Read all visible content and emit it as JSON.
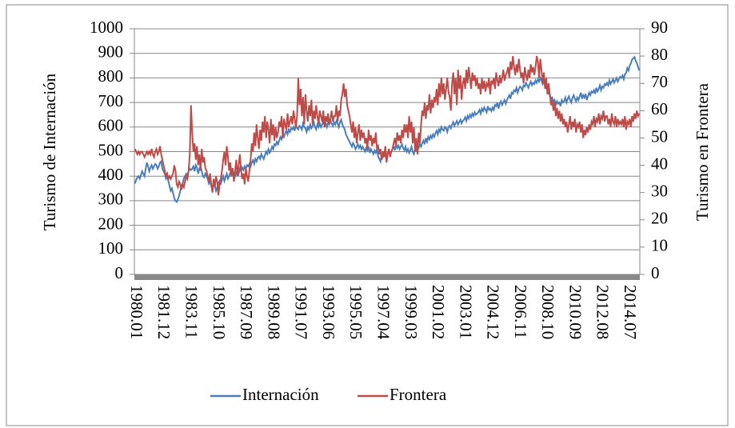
{
  "chart_data": {
    "type": "line",
    "y_label": "Turismo de Internación",
    "y2_label": "Turismo en Frontera",
    "ylim": [
      0,
      1000
    ],
    "yticks": [
      0,
      100,
      200,
      300,
      400,
      500,
      600,
      700,
      800,
      900,
      1000
    ],
    "y2lim": [
      0,
      90
    ],
    "y2ticks": [
      0,
      10,
      20,
      30,
      40,
      50,
      60,
      70,
      80,
      90
    ],
    "grid": true,
    "legend": "bottom",
    "categories": [
      "1980.01",
      null,
      null,
      null,
      null,
      null,
      null,
      null,
      null,
      null,
      null,
      null,
      null,
      null,
      null,
      null,
      null,
      null,
      null,
      null,
      null,
      null,
      null,
      "1981.12",
      null,
      null,
      null,
      null,
      null,
      null,
      null,
      null,
      null,
      null,
      null,
      null,
      null,
      null,
      null,
      null,
      null,
      null,
      null,
      null,
      null,
      null,
      "1983.11",
      null,
      null,
      null,
      null,
      null,
      null,
      null,
      null,
      null,
      null,
      null,
      null,
      null,
      null,
      null,
      null,
      null,
      null,
      null,
      null,
      null,
      null,
      "1985.10",
      null,
      null,
      null,
      null,
      null,
      null,
      null,
      null,
      null,
      null,
      null,
      null,
      null,
      null,
      null,
      null,
      null,
      null,
      null,
      null,
      null,
      null,
      "1987.09",
      null,
      null,
      null,
      null,
      null,
      null,
      null,
      null,
      null,
      null,
      null,
      null,
      null,
      null,
      null,
      null,
      null,
      null,
      null,
      null,
      null,
      null,
      "1989.08",
      null,
      null,
      null,
      null,
      null,
      null,
      null,
      null,
      null,
      null,
      null,
      null,
      null,
      null,
      null,
      null,
      null,
      null,
      null,
      null,
      null,
      null,
      "1991.07",
      null,
      null,
      null,
      null,
      null,
      null,
      null,
      null,
      null,
      null,
      null,
      null,
      null,
      null,
      null,
      null,
      null,
      null,
      null,
      null,
      null,
      null,
      "1993.06",
      null,
      null,
      null,
      null,
      null,
      null,
      null,
      null,
      null,
      null,
      null,
      null,
      null,
      null,
      null,
      null,
      null,
      null,
      null,
      null,
      null,
      null,
      "1995.05",
      null,
      null,
      null,
      null,
      null,
      null,
      null,
      null,
      null,
      null,
      null,
      null,
      null,
      null,
      null,
      null,
      null,
      null,
      null,
      null,
      null,
      null,
      "1997.04",
      null,
      null,
      null,
      null,
      null,
      null,
      null,
      null,
      null,
      null,
      null,
      null,
      null,
      null,
      null,
      null,
      null,
      null,
      null,
      null,
      null,
      null,
      "1999.03",
      null,
      null,
      null,
      null,
      null,
      null,
      null,
      null,
      null,
      null,
      null,
      null,
      null,
      null,
      null,
      null,
      null,
      null,
      null,
      null,
      null,
      null,
      "2001.02",
      null,
      null,
      null,
      null,
      null,
      null,
      null,
      null,
      null,
      null,
      null,
      null,
      null,
      null,
      null,
      null,
      null,
      null,
      null,
      null,
      null,
      null,
      "2003.01",
      null,
      null,
      null,
      null,
      null,
      null,
      null,
      null,
      null,
      null,
      null,
      null,
      null,
      null,
      null,
      null,
      null,
      null,
      null,
      null,
      null,
      null,
      "2004.12",
      null,
      null,
      null,
      null,
      null,
      null,
      null,
      null,
      null,
      null,
      null,
      null,
      null,
      null,
      null,
      null,
      null,
      null,
      null,
      null,
      null,
      null,
      "2006.11",
      null,
      null,
      null,
      null,
      null,
      null,
      null,
      null,
      null,
      null,
      null,
      null,
      null,
      null,
      null,
      null,
      null,
      null,
      null,
      null,
      null,
      null,
      "2008.10",
      null,
      null,
      null,
      null,
      null,
      null,
      null,
      null,
      null,
      null,
      null,
      null,
      null,
      null,
      null,
      null,
      null,
      null,
      null,
      null,
      null,
      null,
      "2010.09",
      null,
      null,
      null,
      null,
      null,
      null,
      null,
      null,
      null,
      null,
      null,
      null,
      null,
      null,
      null,
      null,
      null,
      null,
      null,
      null,
      null,
      null,
      "2012.08",
      null,
      null,
      null,
      null,
      null,
      null,
      null,
      null,
      null,
      null,
      null,
      null,
      null,
      null,
      null,
      null,
      null,
      null,
      null,
      null,
      null,
      null,
      "2014.07",
      null,
      null,
      null,
      null,
      null,
      null,
      null,
      null,
      null
    ],
    "series": [
      {
        "name": "Internación",
        "color": "#4a7ebb",
        "values": [
          370,
          385,
          395,
          400,
          390,
          405,
          420,
          410,
          400,
          430,
          455,
          440,
          420,
          435,
          445,
          430,
          440,
          450,
          445,
          430,
          440,
          455,
          460,
          430,
          420,
          410,
          390,
          400,
          380,
          360,
          340,
          350,
          330,
          310,
          300,
          295,
          305,
          320,
          340,
          360,
          370,
          390,
          400,
          410,
          405,
          420,
          430,
          425,
          430,
          440,
          420,
          445,
          435,
          410,
          430,
          440,
          420,
          400,
          395,
          410,
          400,
          390,
          370,
          380,
          360,
          350,
          370,
          360,
          340,
          355,
          370,
          380,
          370,
          385,
          400,
          380,
          395,
          410,
          390,
          400,
          415,
          405,
          420,
          410,
          400,
          415,
          425,
          410,
          430,
          420,
          435,
          425,
          440,
          430,
          445,
          440,
          450,
          440,
          455,
          465,
          450,
          470,
          460,
          475,
          480,
          470,
          490,
          480,
          470,
          485,
          500,
          490,
          510,
          495,
          505,
          520,
          510,
          530,
          525,
          540,
          530,
          545,
          560,
          550,
          570,
          560,
          575,
          585,
          570,
          590,
          580,
          595,
          590,
          600,
          585,
          610,
          595,
          590,
          605,
          600,
          590,
          615,
          600,
          595,
          580,
          600,
          590,
          610,
          595,
          605,
          620,
          600,
          590,
          610,
          600,
          615,
          600,
          610,
          625,
          605,
          615,
          600,
          620,
          610,
          625,
          615,
          605,
          620,
          610,
          625,
          615,
          600,
          620,
          630,
          610,
          600,
          590,
          570,
          560,
          550,
          540,
          530,
          520,
          535,
          525,
          510,
          520,
          530,
          515,
          525,
          510,
          520,
          510,
          500,
          515,
          505,
          520,
          495,
          510,
          500,
          490,
          505,
          495,
          510,
          480,
          470,
          460,
          490,
          475,
          500,
          485,
          470,
          495,
          505,
          490,
          500,
          510,
          520,
          505,
          530,
          515,
          525,
          510,
          520,
          530,
          515,
          505,
          520,
          500,
          510,
          495,
          505,
          520,
          500,
          490,
          510,
          505,
          520,
          515,
          530,
          520,
          535,
          545,
          530,
          555,
          540,
          560,
          550,
          565,
          555,
          570,
          560,
          575,
          585,
          570,
          590,
          580,
          600,
          590,
          585,
          600,
          595,
          580,
          600,
          605,
          595,
          610,
          620,
          605,
          615,
          625,
          610,
          620,
          630,
          615,
          625,
          630,
          640,
          625,
          645,
          635,
          650,
          640,
          655,
          645,
          660,
          650,
          655,
          660,
          670,
          655,
          675,
          665,
          680,
          670,
          660,
          685,
          670,
          675,
          665,
          680,
          670,
          690,
          685,
          700,
          675,
          695,
          705,
          690,
          700,
          710,
          695,
          710,
          720,
          730,
          715,
          740,
          735,
          750,
          745,
          760,
          740,
          755,
          765,
          760,
          750,
          770,
          765,
          780,
          770,
          760,
          775,
          785,
          770,
          780,
          775,
          790,
          780,
          795,
          785,
          800,
          790,
          775,
          785,
          770,
          760,
          750,
          740,
          730,
          715,
          720,
          700,
          710,
          690,
          705,
          695,
          700,
          685,
          710,
          700,
          705,
          720,
          700,
          715,
          725,
          710,
          700,
          720,
          730,
          715,
          705,
          720,
          710,
          725,
          740,
          715,
          730,
          720,
          735,
          710,
          725,
          740,
          730,
          745,
          740,
          750,
          735,
          760,
          745,
          755,
          770,
          750,
          765,
          760,
          775,
          770,
          780,
          770,
          790,
          775,
          785,
          795,
          780,
          790,
          800,
          785,
          795,
          805,
          800,
          810,
          795,
          815,
          820,
          840,
          830,
          850,
          860,
          875,
          880,
          885,
          870,
          860,
          845,
          830
        ]
      },
      {
        "name": "Frontera",
        "color": "#be4b48",
        "axis": "y2",
        "values": [
          46,
          45,
          44,
          45,
          44,
          45,
          45,
          44,
          43,
          44,
          45,
          44,
          45,
          44,
          46,
          44,
          43,
          45,
          46,
          44,
          45,
          47,
          44,
          42,
          40,
          38,
          36,
          37,
          35,
          36,
          35,
          36,
          37,
          40,
          38,
          33,
          32,
          34,
          33,
          31,
          33,
          32,
          34,
          36,
          35,
          38,
          44,
          62,
          52,
          45,
          48,
          42,
          47,
          40,
          44,
          38,
          46,
          41,
          43,
          39,
          38,
          36,
          34,
          37,
          33,
          30,
          35,
          32,
          36,
          34,
          29,
          33,
          35,
          38,
          42,
          45,
          40,
          47,
          43,
          38,
          41,
          36,
          39,
          34,
          38,
          42,
          36,
          40,
          44,
          38,
          35,
          37,
          33,
          39,
          36,
          34,
          38,
          42,
          48,
          45,
          52,
          47,
          55,
          50,
          46,
          53,
          49,
          56,
          52,
          58,
          50,
          56,
          53,
          48,
          57,
          51,
          55,
          49,
          54,
          50,
          52,
          56,
          54,
          58,
          50,
          57,
          55,
          53,
          59,
          54,
          56,
          58,
          55,
          60,
          57,
          54,
          58,
          72,
          62,
          68,
          58,
          65,
          55,
          66,
          60,
          56,
          62,
          58,
          64,
          55,
          60,
          57,
          62,
          58,
          55,
          60,
          58,
          56,
          60,
          54,
          58,
          56,
          59,
          55,
          57,
          60,
          56,
          58,
          58,
          62,
          56,
          60,
          58,
          64,
          66,
          70,
          65,
          68,
          62,
          60,
          58,
          55,
          52,
          56,
          50,
          54,
          48,
          52,
          55,
          49,
          53,
          50,
          52,
          48,
          50,
          46,
          53,
          49,
          51,
          47,
          50,
          48,
          52,
          46,
          47,
          44,
          46,
          42,
          45,
          43,
          47,
          41,
          44,
          46,
          43,
          45,
          46,
          48,
          50,
          47,
          52,
          49,
          51,
          48,
          53,
          50,
          55,
          52,
          55,
          50,
          58,
          52,
          56,
          48,
          54,
          45,
          50,
          44,
          52,
          48,
          55,
          60,
          58,
          63,
          57,
          62,
          60,
          66,
          59,
          64,
          61,
          65,
          63,
          68,
          62,
          70,
          65,
          72,
          66,
          70,
          64,
          68,
          72,
          67,
          65,
          60,
          70,
          74,
          66,
          72,
          62,
          75,
          68,
          73,
          64,
          70,
          72,
          68,
          75,
          70,
          76,
          72,
          68,
          74,
          71,
          73,
          69,
          72,
          68,
          70,
          66,
          72,
          68,
          71,
          67,
          70,
          69,
          72,
          66,
          71,
          70,
          72,
          68,
          74,
          71,
          69,
          73,
          70,
          72,
          75,
          71,
          73,
          74,
          76,
          72,
          78,
          75,
          80,
          76,
          73,
          77,
          74,
          79,
          75,
          72,
          74,
          70,
          76,
          73,
          71,
          75,
          72,
          77,
          74,
          76,
          73,
          76,
          80,
          78,
          72,
          79,
          75,
          70,
          74,
          68,
          72,
          66,
          70,
          66,
          62,
          64,
          60,
          63,
          58,
          61,
          57,
          60,
          56,
          59,
          55,
          57,
          54,
          56,
          52,
          55,
          58,
          53,
          56,
          54,
          57,
          52,
          55,
          54,
          56,
          52,
          55,
          50,
          53,
          51,
          54,
          52,
          55,
          53,
          56,
          55,
          58,
          54,
          57,
          56,
          59,
          55,
          58,
          57,
          60,
          56,
          58,
          58,
          55,
          57,
          54,
          59,
          56,
          55,
          58,
          54,
          57,
          55,
          56,
          55,
          57,
          54,
          58,
          53,
          56,
          55,
          57,
          54,
          58,
          56,
          59,
          57,
          60,
          58,
          59
        ]
      }
    ]
  }
}
